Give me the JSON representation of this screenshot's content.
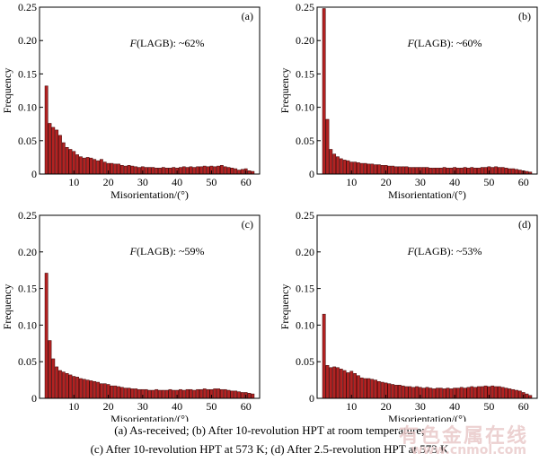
{
  "captions": {
    "line1": "(a) As-received; (b) After 10-revolution HPT at room temperature;",
    "line2": "(c) After 10-revolution HPT at 573 K; (d) After 2.5-revolution HPT at 573 K"
  },
  "watermark": {
    "text": "有色金属在线",
    "sub": "www.cnmol.com"
  },
  "colors": {
    "bar_fill": "#b22222",
    "bar_stroke": "#3a0606"
  },
  "chart_data": [
    {
      "type": "bar",
      "panel_label": "(a)",
      "annotation": "F(LAGB): ~62%",
      "xlabel": "Misorientation/(°)",
      "ylabel": "Frequency",
      "xlim": [
        0,
        64
      ],
      "ylim": [
        0,
        0.25
      ],
      "xticks": [
        10,
        20,
        30,
        40,
        50,
        60
      ],
      "yticks": [
        0,
        0.05,
        0.1,
        0.15,
        0.2,
        0.25
      ],
      "ytick_labels": [
        "0",
        "0.05",
        "0.10",
        "0.15",
        "0.20",
        "0.25"
      ],
      "x": [
        2,
        3,
        4,
        5,
        6,
        7,
        8,
        9,
        10,
        11,
        12,
        13,
        14,
        15,
        16,
        17,
        18,
        19,
        20,
        21,
        22,
        23,
        24,
        25,
        26,
        27,
        28,
        29,
        30,
        31,
        32,
        33,
        34,
        35,
        36,
        37,
        38,
        39,
        40,
        41,
        42,
        43,
        44,
        45,
        46,
        47,
        48,
        49,
        50,
        51,
        52,
        53,
        54,
        55,
        56,
        57,
        58,
        59,
        60,
        61,
        62
      ],
      "values": [
        0.132,
        0.076,
        0.07,
        0.066,
        0.058,
        0.047,
        0.04,
        0.037,
        0.034,
        0.029,
        0.026,
        0.024,
        0.025,
        0.024,
        0.022,
        0.02,
        0.022,
        0.018,
        0.016,
        0.016,
        0.015,
        0.015,
        0.013,
        0.012,
        0.013,
        0.012,
        0.011,
        0.01,
        0.011,
        0.01,
        0.01,
        0.01,
        0.009,
        0.009,
        0.01,
        0.009,
        0.009,
        0.01,
        0.009,
        0.01,
        0.011,
        0.01,
        0.011,
        0.01,
        0.011,
        0.011,
        0.012,
        0.011,
        0.012,
        0.011,
        0.012,
        0.013,
        0.011,
        0.01,
        0.009,
        0.008,
        0.006,
        0.007,
        0.008,
        0.005,
        0.004
      ]
    },
    {
      "type": "bar",
      "panel_label": "(b)",
      "annotation": "F(LAGB): ~60%",
      "xlabel": "Misorientation/(°)",
      "ylabel": "Frequency",
      "xlim": [
        0,
        64
      ],
      "ylim": [
        0,
        0.25
      ],
      "xticks": [
        10,
        20,
        30,
        40,
        50,
        60
      ],
      "yticks": [
        0,
        0.05,
        0.1,
        0.15,
        0.2,
        0.25
      ],
      "ytick_labels": [
        "0",
        "0.05",
        "0.10",
        "0.15",
        "0.20",
        "0.25"
      ],
      "x": [
        2,
        3,
        4,
        5,
        6,
        7,
        8,
        9,
        10,
        11,
        12,
        13,
        14,
        15,
        16,
        17,
        18,
        19,
        20,
        21,
        22,
        23,
        24,
        25,
        26,
        27,
        28,
        29,
        30,
        31,
        32,
        33,
        34,
        35,
        36,
        37,
        38,
        39,
        40,
        41,
        42,
        43,
        44,
        45,
        46,
        47,
        48,
        49,
        50,
        51,
        52,
        53,
        54,
        55,
        56,
        57,
        58,
        59,
        60,
        61,
        62
      ],
      "values": [
        0.248,
        0.082,
        0.037,
        0.03,
        0.026,
        0.023,
        0.021,
        0.02,
        0.018,
        0.018,
        0.017,
        0.016,
        0.016,
        0.015,
        0.015,
        0.014,
        0.014,
        0.013,
        0.013,
        0.012,
        0.012,
        0.011,
        0.011,
        0.011,
        0.011,
        0.01,
        0.01,
        0.01,
        0.01,
        0.01,
        0.01,
        0.009,
        0.009,
        0.009,
        0.009,
        0.01,
        0.009,
        0.009,
        0.01,
        0.009,
        0.009,
        0.01,
        0.009,
        0.01,
        0.009,
        0.009,
        0.01,
        0.01,
        0.011,
        0.01,
        0.011,
        0.01,
        0.01,
        0.009,
        0.008,
        0.008,
        0.007,
        0.006,
        0.005,
        0.004,
        0.003
      ]
    },
    {
      "type": "bar",
      "panel_label": "(c)",
      "annotation": "F(LAGB): ~59%",
      "xlabel": "Misorientation/(°)",
      "ylabel": "Frequency",
      "xlim": [
        0,
        64
      ],
      "ylim": [
        0,
        0.25
      ],
      "xticks": [
        10,
        20,
        30,
        40,
        50,
        60
      ],
      "yticks": [
        0,
        0.05,
        0.1,
        0.15,
        0.2,
        0.25
      ],
      "ytick_labels": [
        "0",
        "0.05",
        "0.10",
        "0.15",
        "0.20",
        "0.25"
      ],
      "x": [
        2,
        3,
        4,
        5,
        6,
        7,
        8,
        9,
        10,
        11,
        12,
        13,
        14,
        15,
        16,
        17,
        18,
        19,
        20,
        21,
        22,
        23,
        24,
        25,
        26,
        27,
        28,
        29,
        30,
        31,
        32,
        33,
        34,
        35,
        36,
        37,
        38,
        39,
        40,
        41,
        42,
        43,
        44,
        45,
        46,
        47,
        48,
        49,
        50,
        51,
        52,
        53,
        54,
        55,
        56,
        57,
        58,
        59,
        60,
        61,
        62
      ],
      "values": [
        0.171,
        0.079,
        0.054,
        0.043,
        0.038,
        0.036,
        0.034,
        0.032,
        0.03,
        0.029,
        0.027,
        0.026,
        0.025,
        0.024,
        0.023,
        0.022,
        0.02,
        0.02,
        0.019,
        0.017,
        0.017,
        0.016,
        0.015,
        0.014,
        0.014,
        0.013,
        0.013,
        0.012,
        0.012,
        0.012,
        0.011,
        0.011,
        0.012,
        0.011,
        0.011,
        0.011,
        0.012,
        0.011,
        0.011,
        0.012,
        0.011,
        0.012,
        0.012,
        0.011,
        0.012,
        0.012,
        0.013,
        0.012,
        0.012,
        0.013,
        0.013,
        0.012,
        0.012,
        0.011,
        0.01,
        0.01,
        0.009,
        0.008,
        0.008,
        0.007,
        0.006
      ]
    },
    {
      "type": "bar",
      "panel_label": "(d)",
      "annotation": "F(LAGB): ~53%",
      "xlabel": "Misorientation/(°)",
      "ylabel": "Frequency",
      "xlim": [
        0,
        64
      ],
      "ylim": [
        0,
        0.25
      ],
      "xticks": [
        10,
        20,
        30,
        40,
        50,
        60
      ],
      "yticks": [
        0,
        0.05,
        0.1,
        0.15,
        0.2,
        0.25
      ],
      "ytick_labels": [
        "0",
        "0.05",
        "0.10",
        "0.15",
        "0.20",
        "0.25"
      ],
      "x": [
        2,
        3,
        4,
        5,
        6,
        7,
        8,
        9,
        10,
        11,
        12,
        13,
        14,
        15,
        16,
        17,
        18,
        19,
        20,
        21,
        22,
        23,
        24,
        25,
        26,
        27,
        28,
        29,
        30,
        31,
        32,
        33,
        34,
        35,
        36,
        37,
        38,
        39,
        40,
        41,
        42,
        43,
        44,
        45,
        46,
        47,
        48,
        49,
        50,
        51,
        52,
        53,
        54,
        55,
        56,
        57,
        58,
        59,
        60,
        61,
        62
      ],
      "values": [
        0.115,
        0.045,
        0.042,
        0.043,
        0.042,
        0.04,
        0.038,
        0.035,
        0.037,
        0.034,
        0.031,
        0.028,
        0.027,
        0.027,
        0.026,
        0.025,
        0.023,
        0.022,
        0.021,
        0.02,
        0.019,
        0.018,
        0.018,
        0.017,
        0.016,
        0.016,
        0.015,
        0.016,
        0.015,
        0.014,
        0.015,
        0.014,
        0.013,
        0.014,
        0.014,
        0.013,
        0.014,
        0.013,
        0.014,
        0.014,
        0.015,
        0.014,
        0.015,
        0.016,
        0.015,
        0.016,
        0.016,
        0.017,
        0.016,
        0.017,
        0.016,
        0.016,
        0.015,
        0.014,
        0.013,
        0.012,
        0.011,
        0.01,
        0.008,
        0.006,
        0.004
      ]
    }
  ]
}
